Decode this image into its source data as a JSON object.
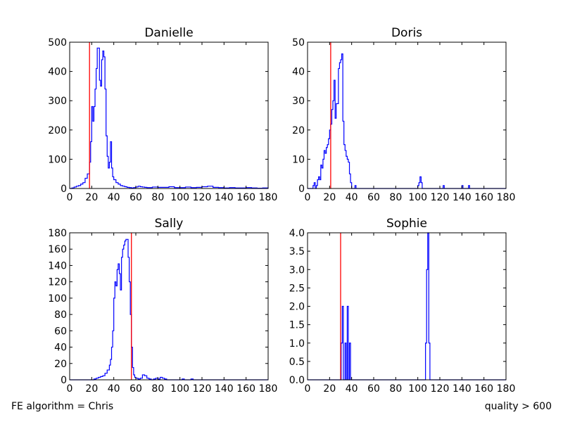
{
  "footer": {
    "left_text": "FE algorithm = Chris",
    "right_text": "quality > 600"
  },
  "colors": {
    "histogram": "#0000ff",
    "threshold": "#ff0000",
    "axes": "#000000"
  },
  "chart_data": [
    {
      "type": "histogram",
      "title": "Danielle",
      "xlim": [
        0,
        180
      ],
      "ylim": [
        0,
        500
      ],
      "xticks": [
        0,
        20,
        40,
        60,
        80,
        100,
        120,
        140,
        160,
        180
      ],
      "yticks": [
        0,
        100,
        200,
        300,
        400,
        500
      ],
      "threshold_x": 18,
      "points": [
        [
          0,
          0
        ],
        [
          2,
          2
        ],
        [
          4,
          5
        ],
        [
          6,
          8
        ],
        [
          8,
          10
        ],
        [
          10,
          15
        ],
        [
          12,
          20
        ],
        [
          14,
          35
        ],
        [
          16,
          50
        ],
        [
          18,
          90
        ],
        [
          19,
          160
        ],
        [
          20,
          280
        ],
        [
          21,
          230
        ],
        [
          22,
          280
        ],
        [
          23,
          340
        ],
        [
          24,
          410
        ],
        [
          25,
          480
        ],
        [
          26,
          480
        ],
        [
          27,
          370
        ],
        [
          28,
          350
        ],
        [
          29,
          440
        ],
        [
          30,
          470
        ],
        [
          31,
          450
        ],
        [
          32,
          340
        ],
        [
          33,
          180
        ],
        [
          34,
          110
        ],
        [
          35,
          70
        ],
        [
          36,
          90
        ],
        [
          37,
          160
        ],
        [
          38,
          70
        ],
        [
          39,
          40
        ],
        [
          40,
          30
        ],
        [
          42,
          20
        ],
        [
          44,
          15
        ],
        [
          46,
          10
        ],
        [
          48,
          8
        ],
        [
          50,
          6
        ],
        [
          52,
          4
        ],
        [
          54,
          3
        ],
        [
          56,
          2
        ],
        [
          58,
          3
        ],
        [
          60,
          5
        ],
        [
          62,
          8
        ],
        [
          64,
          6
        ],
        [
          66,
          5
        ],
        [
          68,
          4
        ],
        [
          70,
          3
        ],
        [
          75,
          5
        ],
        [
          80,
          4
        ],
        [
          85,
          4
        ],
        [
          90,
          6
        ],
        [
          95,
          3
        ],
        [
          100,
          3
        ],
        [
          105,
          5
        ],
        [
          110,
          3
        ],
        [
          115,
          4
        ],
        [
          120,
          6
        ],
        [
          125,
          8
        ],
        [
          130,
          4
        ],
        [
          135,
          3
        ],
        [
          140,
          2
        ],
        [
          145,
          3
        ],
        [
          150,
          2
        ],
        [
          155,
          2
        ],
        [
          160,
          3
        ],
        [
          165,
          2
        ],
        [
          170,
          1
        ],
        [
          175,
          2
        ],
        [
          180,
          0
        ]
      ]
    },
    {
      "type": "histogram",
      "title": "Doris",
      "xlim": [
        0,
        180
      ],
      "ylim": [
        0,
        50
      ],
      "xticks": [
        0,
        20,
        40,
        60,
        80,
        100,
        120,
        140,
        160,
        180
      ],
      "yticks": [
        0,
        10,
        20,
        30,
        40,
        50
      ],
      "threshold_x": 21,
      "points": [
        [
          0,
          0
        ],
        [
          4,
          0
        ],
        [
          5,
          1
        ],
        [
          6,
          2
        ],
        [
          7,
          0
        ],
        [
          8,
          1
        ],
        [
          9,
          3
        ],
        [
          10,
          4
        ],
        [
          11,
          3
        ],
        [
          12,
          8
        ],
        [
          13,
          7
        ],
        [
          14,
          10
        ],
        [
          15,
          13
        ],
        [
          16,
          12
        ],
        [
          17,
          14
        ],
        [
          18,
          15
        ],
        [
          19,
          17
        ],
        [
          20,
          20
        ],
        [
          21,
          22
        ],
        [
          22,
          27
        ],
        [
          23,
          30
        ],
        [
          24,
          37
        ],
        [
          25,
          24
        ],
        [
          26,
          29
        ],
        [
          27,
          29
        ],
        [
          28,
          41
        ],
        [
          29,
          43
        ],
        [
          30,
          44
        ],
        [
          31,
          46
        ],
        [
          32,
          23
        ],
        [
          33,
          15
        ],
        [
          34,
          13
        ],
        [
          35,
          11
        ],
        [
          36,
          10
        ],
        [
          37,
          9
        ],
        [
          38,
          5
        ],
        [
          39,
          2
        ],
        [
          40,
          0
        ],
        [
          42,
          0
        ],
        [
          43,
          1
        ],
        [
          44,
          0
        ],
        [
          46,
          0
        ],
        [
          99,
          0
        ],
        [
          100,
          1
        ],
        [
          101,
          2
        ],
        [
          102,
          4
        ],
        [
          103,
          2
        ],
        [
          104,
          0
        ],
        [
          122,
          0
        ],
        [
          123,
          1
        ],
        [
          124,
          0
        ],
        [
          139,
          0
        ],
        [
          140,
          1
        ],
        [
          141,
          0
        ],
        [
          145,
          0
        ],
        [
          146,
          1
        ],
        [
          147,
          0
        ],
        [
          180,
          0
        ]
      ]
    },
    {
      "type": "histogram",
      "title": "Sally",
      "xlim": [
        0,
        180
      ],
      "ylim": [
        0,
        180
      ],
      "xticks": [
        0,
        20,
        40,
        60,
        80,
        100,
        120,
        140,
        160,
        180
      ],
      "yticks": [
        0,
        20,
        40,
        60,
        80,
        100,
        120,
        140,
        160,
        180
      ],
      "threshold_x": 56,
      "points": [
        [
          0,
          0
        ],
        [
          20,
          0
        ],
        [
          22,
          1
        ],
        [
          24,
          2
        ],
        [
          26,
          3
        ],
        [
          28,
          4
        ],
        [
          30,
          5
        ],
        [
          32,
          8
        ],
        [
          34,
          12
        ],
        [
          36,
          18
        ],
        [
          37,
          25
        ],
        [
          38,
          40
        ],
        [
          39,
          60
        ],
        [
          40,
          100
        ],
        [
          41,
          120
        ],
        [
          42,
          115
        ],
        [
          43,
          135
        ],
        [
          44,
          142
        ],
        [
          45,
          130
        ],
        [
          46,
          110
        ],
        [
          47,
          150
        ],
        [
          48,
          160
        ],
        [
          49,
          165
        ],
        [
          50,
          170
        ],
        [
          51,
          172
        ],
        [
          52,
          172
        ],
        [
          53,
          150
        ],
        [
          54,
          120
        ],
        [
          55,
          80
        ],
        [
          56,
          40
        ],
        [
          57,
          15
        ],
        [
          58,
          6
        ],
        [
          59,
          3
        ],
        [
          60,
          2
        ],
        [
          62,
          1
        ],
        [
          64,
          2
        ],
        [
          66,
          6
        ],
        [
          68,
          5
        ],
        [
          70,
          2
        ],
        [
          72,
          1
        ],
        [
          74,
          0
        ],
        [
          76,
          1
        ],
        [
          78,
          2
        ],
        [
          80,
          1
        ],
        [
          82,
          3
        ],
        [
          84,
          2
        ],
        [
          86,
          1
        ],
        [
          88,
          0
        ],
        [
          100,
          0
        ],
        [
          102,
          1
        ],
        [
          104,
          0
        ],
        [
          108,
          0
        ],
        [
          110,
          1
        ],
        [
          112,
          0
        ],
        [
          180,
          0
        ]
      ]
    },
    {
      "type": "histogram",
      "title": "Sophie",
      "xlim": [
        0,
        180
      ],
      "ylim": [
        0,
        4.0
      ],
      "xticks": [
        0,
        20,
        40,
        60,
        80,
        100,
        120,
        140,
        160,
        180
      ],
      "yticks": [
        0.0,
        0.5,
        1.0,
        1.5,
        2.0,
        2.5,
        3.0,
        3.5,
        4.0
      ],
      "threshold_x": 30,
      "points": [
        [
          0,
          0
        ],
        [
          30,
          0
        ],
        [
          30.5,
          1
        ],
        [
          31.5,
          2
        ],
        [
          32.5,
          0
        ],
        [
          33.5,
          0
        ],
        [
          34,
          1
        ],
        [
          35,
          0
        ],
        [
          36,
          2
        ],
        [
          37,
          0
        ],
        [
          38,
          1
        ],
        [
          39,
          0
        ],
        [
          106,
          0
        ],
        [
          107,
          1
        ],
        [
          108,
          3
        ],
        [
          109,
          4
        ],
        [
          110,
          1
        ],
        [
          111,
          0
        ],
        [
          180,
          0
        ]
      ]
    }
  ]
}
